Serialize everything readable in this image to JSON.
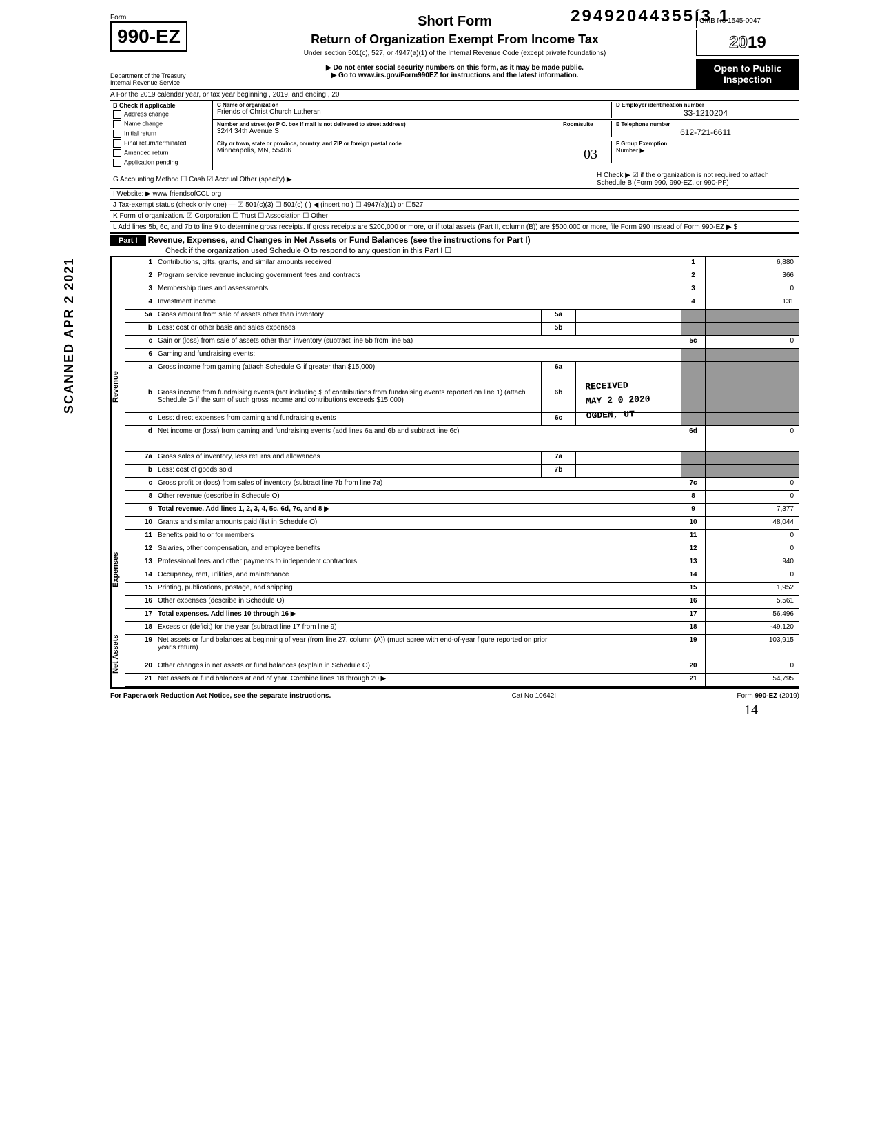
{
  "top_number": "29492044355í3  1",
  "scanned_date": "SCANNED APR 2 2021",
  "form": {
    "prefix": "Form",
    "number": "990-EZ",
    "dept1": "Department of the Treasury",
    "dept2": "Internal Revenue Service"
  },
  "title": {
    "short": "Short Form",
    "main": "Return of Organization Exempt From Income Tax",
    "under": "Under section 501(c), 527, or 4947(a)(1) of the Internal Revenue Code (except private foundations)",
    "warn1": "▶ Do not enter social security numbers on this form, as it may be made public.",
    "warn2": "▶ Go to www.irs.gov/Form990EZ for instructions and the latest information."
  },
  "right": {
    "omb": "OMB No 1545-0047",
    "year": "2019",
    "public1": "Open to Public",
    "public2": "Inspection"
  },
  "section_a": "A  For the 2019 calendar year, or tax year beginning                                                           , 2019, and ending                                                , 20",
  "section_b": {
    "header": "B  Check if applicable",
    "items": [
      "Address change",
      "Name change",
      "Initial return",
      "Final return/terminated",
      "Amended return",
      "Application pending"
    ]
  },
  "section_c": {
    "name_label": "C  Name of organization",
    "name_value": "Friends of Christ Church Lutheran",
    "addr_label": "Number and street (or P O. box if mail is not delivered to street address)",
    "room_label": "Room/suite",
    "addr_value": "3244 34th Avenue S",
    "city_label": "City or town, state or province, country, and ZIP or foreign postal code",
    "city_value": "Minneapolis, MN, 55406"
  },
  "section_d": {
    "label": "D Employer identification number",
    "value": "33-1210204"
  },
  "section_e": {
    "label": "E Telephone number",
    "value": "612-721-6611"
  },
  "section_f": {
    "label": "F Group Exemption",
    "label2": "Number ▶"
  },
  "section_g": "G  Accounting Method        ☐ Cash      ☑ Accrual      Other (specify) ▶",
  "section_h": "H  Check ▶ ☑ if the organization is not required to attach Schedule B (Form 990, 990-EZ, or 990-PF)",
  "section_i": "I   Website: ▶       www friendsofCCL org",
  "section_j": "J  Tax-exempt status (check only one) — ☑ 501(c)(3)    ☐ 501(c) (        ) ◀ (insert no )  ☐ 4947(a)(1) or   ☐527",
  "section_k": "K  Form of organization.    ☑ Corporation       ☐ Trust               ☐ Association       ☐ Other",
  "section_l": "L  Add lines 5b, 6c, and 7b to line 9 to determine gross receipts. If gross receipts are $200,000 or more, or if total assets (Part II, column (B)) are $500,000 or more, file Form 990 instead of Form 990-EZ                                                       ▶     $",
  "part1": {
    "label": "Part I",
    "title": "Revenue, Expenses, and Changes in Net Assets or Fund Balances (see the instructions for Part I)",
    "check": "Check if the organization used Schedule O to respond to any question in this Part I                                                                    ☐"
  },
  "groups": {
    "revenue": "Revenue",
    "expenses": "Expenses",
    "net": "Net Assets"
  },
  "lines": [
    {
      "n": "1",
      "d": "Contributions, gifts, grants, and similar amounts received",
      "eb": "1",
      "ev": "6,880"
    },
    {
      "n": "2",
      "d": "Program service revenue including government fees and contracts",
      "eb": "2",
      "ev": "366"
    },
    {
      "n": "3",
      "d": "Membership dues and assessments",
      "eb": "3",
      "ev": "0"
    },
    {
      "n": "4",
      "d": "Investment income",
      "eb": "4",
      "ev": "131"
    },
    {
      "n": "5a",
      "d": "Gross amount from sale of assets other than inventory",
      "mb": "5a",
      "mv": "",
      "shade_end": true
    },
    {
      "n": "b",
      "d": "Less: cost or other basis and sales expenses",
      "mb": "5b",
      "mv": "",
      "shade_end": true
    },
    {
      "n": "c",
      "d": "Gain or (loss) from sale of assets other than inventory (subtract line 5b from line 5a)",
      "eb": "5c",
      "ev": "0"
    },
    {
      "n": "6",
      "d": "Gaming and fundraising events:",
      "shade_end": true,
      "shade_box": true
    },
    {
      "n": "a",
      "d": "Gross income from gaming (attach Schedule G if greater than $15,000)",
      "mb": "6a",
      "mv": "",
      "shade_end": true,
      "tall": true
    },
    {
      "n": "b",
      "d": "Gross income from fundraising events (not including  $                          of contributions from fundraising events reported on line 1) (attach Schedule G if the sum of such gross income and contributions exceeds $15,000)",
      "mb": "6b",
      "mv": "",
      "shade_end": true,
      "tall": true
    },
    {
      "n": "c",
      "d": "Less: direct expenses from gaming and fundraising events",
      "mb": "6c",
      "mv": "",
      "shade_end": true
    },
    {
      "n": "d",
      "d": "Net income or (loss) from gaming and fundraising events (add lines 6a and 6b and subtract line 6c)",
      "eb": "6d",
      "ev": "0",
      "tall": true
    },
    {
      "n": "7a",
      "d": "Gross sales of inventory, less returns and allowances",
      "mb": "7a",
      "mv": "",
      "shade_end": true
    },
    {
      "n": "b",
      "d": "Less: cost of goods sold",
      "mb": "7b",
      "mv": "",
      "shade_end": true
    },
    {
      "n": "c",
      "d": "Gross profit or (loss) from sales of inventory (subtract line 7b from line 7a)",
      "eb": "7c",
      "ev": "0"
    },
    {
      "n": "8",
      "d": "Other revenue (describe in Schedule O)",
      "eb": "8",
      "ev": "0"
    },
    {
      "n": "9",
      "d": "Total revenue. Add lines 1, 2, 3, 4, 5c, 6d, 7c, and 8                                                         ▶",
      "eb": "9",
      "ev": "7,377",
      "bold": true
    }
  ],
  "exp_lines": [
    {
      "n": "10",
      "d": "Grants and similar amounts paid (list in Schedule O)",
      "eb": "10",
      "ev": "48,044"
    },
    {
      "n": "11",
      "d": "Benefits paid to or for members",
      "eb": "11",
      "ev": "0"
    },
    {
      "n": "12",
      "d": "Salaries, other compensation, and employee benefits",
      "eb": "12",
      "ev": "0"
    },
    {
      "n": "13",
      "d": "Professional fees and other payments to independent contractors",
      "eb": "13",
      "ev": "940"
    },
    {
      "n": "14",
      "d": "Occupancy, rent, utilities, and maintenance",
      "eb": "14",
      "ev": "0"
    },
    {
      "n": "15",
      "d": "Printing, publications, postage, and shipping",
      "eb": "15",
      "ev": "1,952"
    },
    {
      "n": "16",
      "d": "Other expenses (describe in Schedule O)",
      "eb": "16",
      "ev": "5,561"
    },
    {
      "n": "17",
      "d": "Total expenses. Add lines 10 through 16                                                                       ▶",
      "eb": "17",
      "ev": "56,496",
      "bold": true
    }
  ],
  "net_lines": [
    {
      "n": "18",
      "d": "Excess or (deficit) for the year (subtract line 17 from line 9)",
      "eb": "18",
      "ev": "-49,120"
    },
    {
      "n": "19",
      "d": "Net assets or fund balances at beginning of year (from line 27, column (A)) (must agree with end-of-year figure reported on prior year's return)",
      "eb": "19",
      "ev": "103,915",
      "tall": true
    },
    {
      "n": "20",
      "d": "Other changes in net assets or fund balances (explain in Schedule O)",
      "eb": "20",
      "ev": "0"
    },
    {
      "n": "21",
      "d": "Net assets or fund balances at end of year. Combine lines 18 through 20                                ▶",
      "eb": "21",
      "ev": "54,795"
    }
  ],
  "footer": {
    "left": "For Paperwork Reduction Act Notice, see the separate instructions.",
    "mid": "Cat No  10642I",
    "right": "Form 990-EZ (2019)"
  },
  "stamp": {
    "l1": "RECEIVED",
    "l2": "MAY 2 0 2020",
    "l3": "OGDEN, UT"
  },
  "handwritten_init": "03",
  "handwritten_page": "14"
}
